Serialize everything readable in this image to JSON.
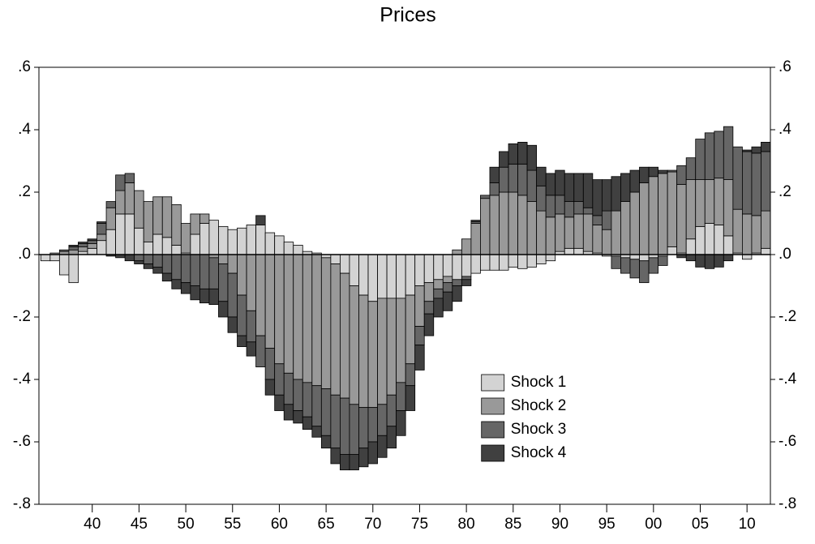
{
  "chart_data": {
    "type": "bar",
    "stacked": true,
    "title": "Prices",
    "x": [
      1935,
      1936,
      1937,
      1938,
      1939,
      1940,
      1941,
      1942,
      1943,
      1944,
      1945,
      1946,
      1947,
      1948,
      1949,
      1950,
      1951,
      1952,
      1953,
      1954,
      1955,
      1956,
      1957,
      1958,
      1959,
      1960,
      1961,
      1962,
      1963,
      1964,
      1965,
      1966,
      1967,
      1968,
      1969,
      1970,
      1971,
      1972,
      1973,
      1974,
      1975,
      1976,
      1977,
      1978,
      1979,
      1980,
      1981,
      1982,
      1983,
      1984,
      1985,
      1986,
      1987,
      1988,
      1989,
      1990,
      1991,
      1992,
      1993,
      1994,
      1995,
      1996,
      1997,
      1998,
      1999,
      2000,
      2001,
      2002,
      2003,
      2004,
      2005,
      2006,
      2007,
      2008,
      2009,
      2010,
      2011,
      2012
    ],
    "series": [
      {
        "name": "Shock 1",
        "color": "#d3d3d3",
        "values": [
          -0.02,
          -0.02,
          -0.065,
          -0.09,
          0.01,
          0.02,
          0.045,
          0.08,
          0.13,
          0.13,
          0.085,
          0.04,
          0.065,
          0.055,
          0.03,
          0.005,
          0.065,
          0.1,
          0.11,
          0.09,
          0.08,
          0.085,
          0.095,
          0.095,
          0.07,
          0.06,
          0.04,
          0.03,
          0.01,
          0.005,
          -0.01,
          -0.03,
          -0.06,
          -0.1,
          -0.13,
          -0.15,
          -0.14,
          -0.14,
          -0.14,
          -0.13,
          -0.1,
          -0.09,
          -0.08,
          -0.07,
          -0.08,
          -0.07,
          -0.06,
          -0.05,
          -0.05,
          -0.05,
          -0.04,
          -0.045,
          -0.04,
          -0.03,
          -0.02,
          0.01,
          0.02,
          0.02,
          0.01,
          0.005,
          -0.005,
          -0.005,
          -0.01,
          -0.015,
          -0.02,
          -0.01,
          -0.005,
          0.025,
          0.005,
          0.05,
          0.09,
          0.1,
          0.095,
          0.06,
          0.005,
          -0.015,
          0.005,
          0.02
        ]
      },
      {
        "name": "Shock 2",
        "color": "#999999",
        "values": [
          0,
          0.005,
          0.01,
          0.015,
          0.015,
          0.015,
          0.02,
          0.07,
          0.075,
          0.1,
          0.12,
          0.13,
          0.12,
          0.13,
          0.13,
          0.095,
          0.065,
          0.03,
          -0.01,
          -0.03,
          -0.06,
          -0.13,
          -0.18,
          -0.26,
          -0.3,
          -0.35,
          -0.38,
          -0.4,
          -0.41,
          -0.42,
          -0.42,
          -0.42,
          -0.4,
          -0.38,
          -0.36,
          -0.34,
          -0.34,
          -0.31,
          -0.27,
          -0.22,
          -0.13,
          -0.06,
          -0.03,
          -0.02,
          0.015,
          0.05,
          0.1,
          0.18,
          0.19,
          0.2,
          0.2,
          0.19,
          0.17,
          0.14,
          0.12,
          0.12,
          0.1,
          0.11,
          0.12,
          0.09,
          0.08,
          0.14,
          0.17,
          0.2,
          0.23,
          0.25,
          0.26,
          0.24,
          0.22,
          0.19,
          0.15,
          0.14,
          0.15,
          0.18,
          0.14,
          0.13,
          0.12,
          0.12
        ]
      },
      {
        "name": "Shock 3",
        "color": "#666666",
        "values": [
          0,
          0,
          0.005,
          0.01,
          0.01,
          0.01,
          0.035,
          0.02,
          0.05,
          0.03,
          -0.02,
          -0.03,
          -0.04,
          -0.06,
          -0.08,
          -0.09,
          -0.1,
          -0.11,
          -0.1,
          -0.12,
          -0.14,
          -0.13,
          -0.1,
          -0.1,
          -0.1,
          -0.1,
          -0.1,
          -0.1,
          -0.11,
          -0.13,
          -0.15,
          -0.17,
          -0.18,
          -0.16,
          -0.13,
          -0.11,
          -0.1,
          -0.1,
          -0.09,
          -0.07,
          -0.06,
          -0.04,
          -0.03,
          -0.03,
          -0.02,
          -0.01,
          0.005,
          0.01,
          0.04,
          0.08,
          0.09,
          0.1,
          0.1,
          0.08,
          0.07,
          0.06,
          0.05,
          0.04,
          0.02,
          0.03,
          0.06,
          -0.04,
          -0.05,
          -0.06,
          -0.07,
          -0.05,
          -0.03,
          0.005,
          0.06,
          0.07,
          0.13,
          0.15,
          0.15,
          0.17,
          0.2,
          0.2,
          0.2,
          0.19
        ]
      },
      {
        "name": "Shock 4",
        "color": "#404040",
        "values": [
          0,
          0,
          0,
          0.005,
          0.005,
          0.005,
          0.005,
          -0.005,
          -0.01,
          -0.02,
          -0.01,
          -0.015,
          -0.02,
          -0.025,
          -0.03,
          -0.035,
          -0.045,
          -0.045,
          -0.05,
          -0.05,
          -0.05,
          -0.035,
          -0.045,
          0.03,
          -0.05,
          -0.05,
          -0.05,
          -0.04,
          -0.04,
          -0.035,
          -0.04,
          -0.05,
          -0.05,
          -0.05,
          -0.06,
          -0.07,
          -0.07,
          -0.07,
          -0.08,
          -0.08,
          -0.08,
          -0.07,
          -0.06,
          -0.06,
          -0.05,
          -0.02,
          0.005,
          0,
          0.05,
          0.05,
          0.065,
          0.07,
          0.08,
          0.06,
          0.07,
          0.08,
          0.09,
          0.09,
          0.11,
          0.115,
          0.1,
          0.11,
          0.09,
          0.07,
          0.05,
          0.03,
          0.01,
          0,
          -0.01,
          -0.02,
          -0.04,
          -0.045,
          -0.04,
          -0.02,
          0,
          0.005,
          0.02,
          0.03
        ]
      }
    ],
    "xlim": [
      1934.3,
      2012.5
    ],
    "xticks": [
      {
        "value": 1940,
        "label": "40"
      },
      {
        "value": 1945,
        "label": "45"
      },
      {
        "value": 1950,
        "label": "50"
      },
      {
        "value": 1955,
        "label": "55"
      },
      {
        "value": 1960,
        "label": "60"
      },
      {
        "value": 1965,
        "label": "65"
      },
      {
        "value": 1970,
        "label": "70"
      },
      {
        "value": 1975,
        "label": "75"
      },
      {
        "value": 1980,
        "label": "80"
      },
      {
        "value": 1985,
        "label": "85"
      },
      {
        "value": 1990,
        "label": "90"
      },
      {
        "value": 1995,
        "label": "95"
      },
      {
        "value": 2000,
        "label": "00"
      },
      {
        "value": 2005,
        "label": "05"
      },
      {
        "value": 2010,
        "label": "10"
      }
    ],
    "ylim": [
      -0.8,
      0.6
    ],
    "yticks": [
      {
        "value": 0.6,
        "label": ".6"
      },
      {
        "value": 0.4,
        "label": ".4"
      },
      {
        "value": 0.2,
        "label": ".2"
      },
      {
        "value": 0,
        "label": ".0"
      },
      {
        "value": -0.2,
        "label": "-.2"
      },
      {
        "value": -0.4,
        "label": "-.4"
      },
      {
        "value": -0.6,
        "label": "-.6"
      },
      {
        "value": -0.8,
        "label": "-.8"
      }
    ],
    "legend": "lower right"
  }
}
